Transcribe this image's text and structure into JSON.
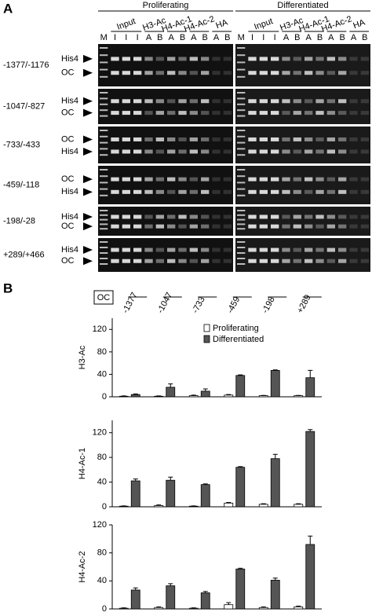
{
  "panel_a": {
    "label": "A",
    "groups": [
      "Proliferating",
      "Differentiated"
    ],
    "lanes": [
      "M",
      "I",
      "I",
      "I",
      "A",
      "B",
      "A",
      "B",
      "A",
      "B",
      "A",
      "B"
    ],
    "lane_groups": [
      "Input",
      "H3-Ac",
      "H4-Ac-1",
      "H4-Ac-2",
      "HA"
    ],
    "rows": [
      {
        "label": "-1377/-1176",
        "bands": [
          "His4",
          "OC"
        ]
      },
      {
        "label": "-1047/-827",
        "bands": [
          "His4",
          "OC"
        ]
      },
      {
        "label": "-733/-433",
        "bands": [
          "OC",
          "His4"
        ]
      },
      {
        "label": "-459/-118",
        "bands": [
          "OC",
          "His4"
        ]
      },
      {
        "label": "-198/-28",
        "bands": [
          "His4",
          "OC"
        ]
      },
      {
        "label": "+289/+466",
        "bands": [
          "His4",
          "OC"
        ]
      }
    ]
  },
  "panel_b": {
    "label": "B",
    "gene": "OC"
  },
  "chart_data": [
    {
      "type": "bar",
      "ylabel": "H3-Ac",
      "categories": [
        "-1377",
        "-1047",
        "-733",
        "-459",
        "-198",
        "+289"
      ],
      "ylim": [
        0,
        140
      ],
      "yticks": [
        0,
        40,
        80,
        120
      ],
      "legend": "upper right",
      "series": [
        {
          "name": "Proliferating",
          "color": "#ffffff",
          "values": [
            1,
            1,
            2,
            3,
            2,
            2
          ],
          "errors": [
            0.5,
            0.5,
            1,
            1,
            0.5,
            0.5
          ]
        },
        {
          "name": "Differentiated",
          "color": "#555555",
          "values": [
            4,
            17,
            10,
            38,
            47,
            34
          ],
          "errors": [
            1,
            6,
            4,
            1,
            1,
            13
          ]
        }
      ]
    },
    {
      "type": "bar",
      "ylabel": "H4-Ac-1",
      "ylim": [
        0,
        140
      ],
      "yticks": [
        0,
        40,
        80,
        120
      ],
      "series": [
        {
          "color": "#ffffff",
          "values": [
            1,
            2,
            1,
            6,
            4,
            4
          ],
          "errors": [
            0.5,
            1,
            0.5,
            1,
            1,
            1
          ]
        },
        {
          "color": "#555555",
          "values": [
            42,
            43,
            36,
            64,
            78,
            122
          ],
          "errors": [
            3,
            5,
            1,
            1,
            7,
            3
          ]
        }
      ]
    },
    {
      "type": "bar",
      "ylabel": "H4-Ac-2",
      "ylim": [
        0,
        120
      ],
      "yticks": [
        0,
        40,
        80,
        120
      ],
      "series": [
        {
          "color": "#ffffff",
          "values": [
            1,
            2,
            1,
            6,
            2,
            3
          ],
          "errors": [
            0.5,
            1,
            0.5,
            3,
            1,
            1
          ]
        },
        {
          "color": "#555555",
          "values": [
            27,
            33,
            23,
            57,
            41,
            92
          ],
          "errors": [
            3,
            3,
            2,
            1,
            3,
            12
          ]
        }
      ]
    }
  ]
}
